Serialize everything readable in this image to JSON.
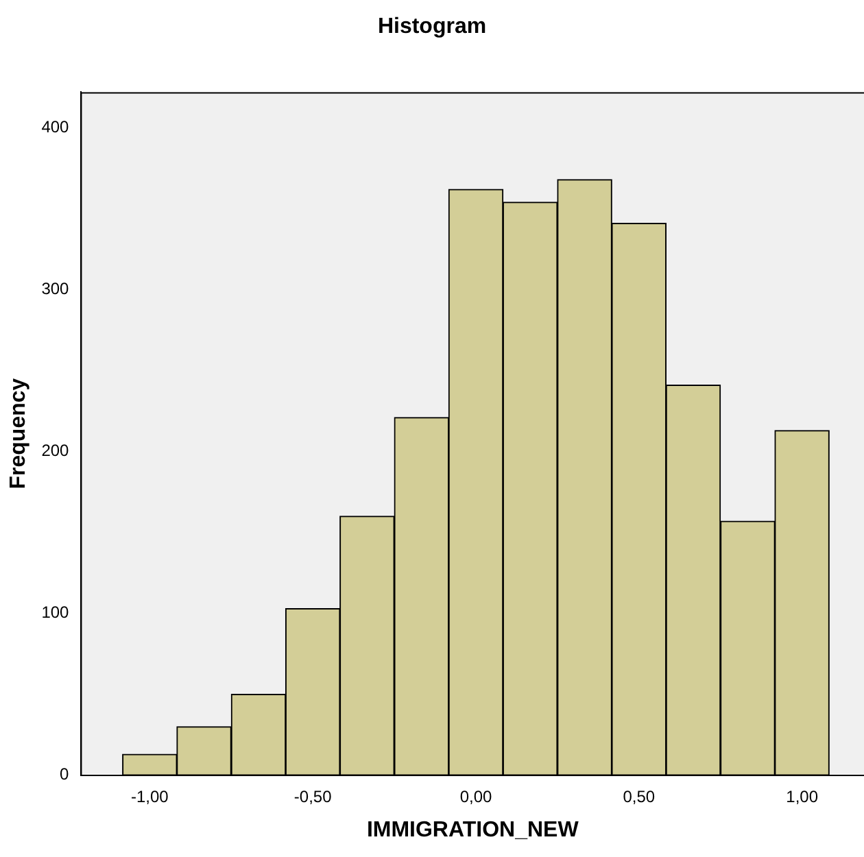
{
  "chart_data": {
    "type": "histogram",
    "title": "Histogram",
    "xlabel": "IMMIGRATION_NEW",
    "ylabel": "Frequency",
    "bins": [
      -1.083,
      -0.917,
      -0.75,
      -0.583,
      -0.417,
      -0.25,
      -0.083,
      0.083,
      0.25,
      0.417,
      0.583,
      0.75,
      0.917,
      1.083
    ],
    "values": [
      13,
      30,
      50,
      103,
      160,
      221,
      362,
      354,
      368,
      341,
      241,
      157,
      213
    ],
    "color": "#d3ce97",
    "xlim": [
      -1.21,
      1.19
    ],
    "xticks": [
      {
        "value": -1,
        "label": "-1,00"
      },
      {
        "value": -0.5,
        "label": "-0,50"
      },
      {
        "value": 0,
        "label": "0,00"
      },
      {
        "value": 0.5,
        "label": "0,50"
      },
      {
        "value": 1,
        "label": "1,00"
      }
    ],
    "ylim": [
      0,
      422
    ],
    "yticks": [
      0,
      100,
      200,
      300,
      400
    ],
    "grid": false,
    "legend": false
  }
}
